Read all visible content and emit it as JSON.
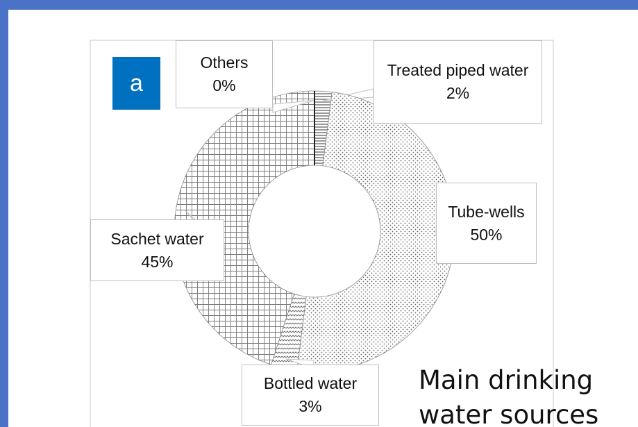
{
  "chart_data": {
    "type": "donut",
    "title": "Main drinking water sources",
    "panel_label": "a",
    "categories": [
      "Treated piped water",
      "Tube-wells",
      "Bottled water",
      "Sachet water",
      "Others"
    ],
    "values": [
      2,
      50,
      3,
      45,
      0
    ],
    "value_labels": [
      "2%",
      "50%",
      "3%",
      "45%",
      "0%"
    ]
  }
}
